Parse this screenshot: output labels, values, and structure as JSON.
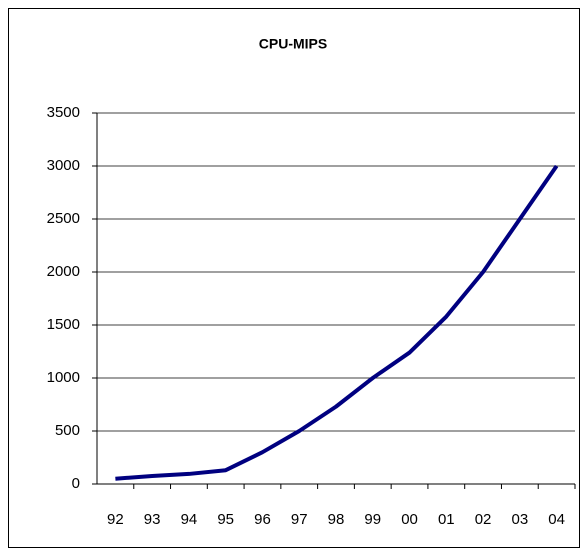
{
  "chart_data": {
    "type": "line",
    "title": "CPU-MIPS",
    "categories": [
      "92",
      "93",
      "94",
      "95",
      "96",
      "97",
      "98",
      "99",
      "00",
      "01",
      "02",
      "03",
      "04"
    ],
    "series": [
      {
        "name": "CPU-MIPS",
        "color": "#000080",
        "values": [
          50,
          75,
          95,
          130,
          300,
          500,
          730,
          1000,
          1240,
          1580,
          2000,
          2500,
          3000
        ]
      }
    ],
    "ylim": [
      0,
      3500
    ],
    "yticks": [
      0,
      500,
      1000,
      1500,
      2000,
      2500,
      3000,
      3500
    ],
    "grid": true
  }
}
